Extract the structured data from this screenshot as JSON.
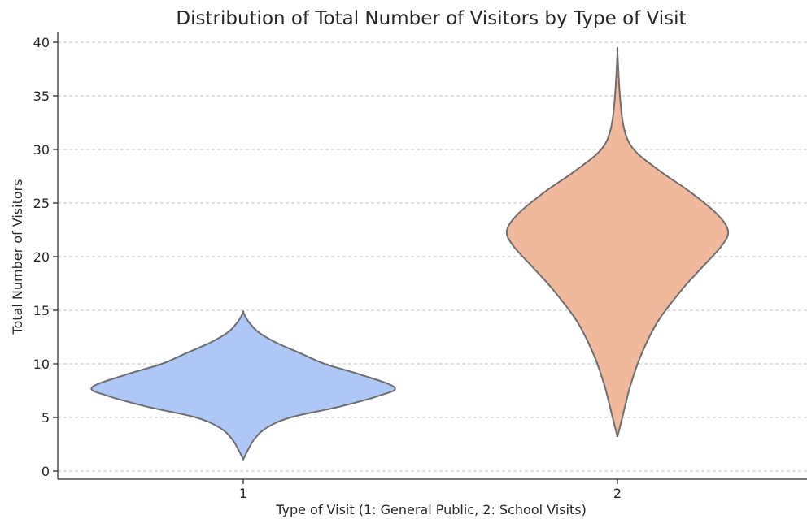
{
  "chart_data": {
    "type": "violin",
    "title": "Distribution of Total Number of Visitors by Type of Visit",
    "xlabel": "Type of Visit (1: General Public, 2: School Visits)",
    "ylabel": "Total Number of Visitors",
    "categories": [
      "1",
      "2"
    ],
    "ylim": [
      -0.5,
      41
    ],
    "yticks": [
      0,
      5,
      10,
      15,
      20,
      25,
      30,
      35,
      40
    ],
    "grid": "horizontal dashed",
    "violins": [
      {
        "category": "1",
        "color": "#aec7f6",
        "density_y": [
          1.1,
          2,
          3,
          4,
          5,
          6,
          7,
          7.8,
          9,
          10,
          11,
          12,
          13,
          14,
          14.8
        ],
        "density_half_width": [
          0.0,
          0.03,
          0.07,
          0.14,
          0.29,
          0.59,
          0.83,
          0.93,
          0.72,
          0.5,
          0.35,
          0.2,
          0.09,
          0.03,
          0.0
        ]
      },
      {
        "category": "2",
        "color": "#f0b89c",
        "density_y": [
          3.2,
          5,
          8,
          11,
          14,
          17,
          19,
          21,
          22.4,
          24,
          26,
          28,
          30,
          32,
          35,
          39
        ],
        "density_half_width": [
          0.0,
          0.03,
          0.08,
          0.15,
          0.25,
          0.4,
          0.52,
          0.64,
          0.68,
          0.61,
          0.45,
          0.26,
          0.1,
          0.04,
          0.015,
          0.0
        ]
      }
    ]
  }
}
